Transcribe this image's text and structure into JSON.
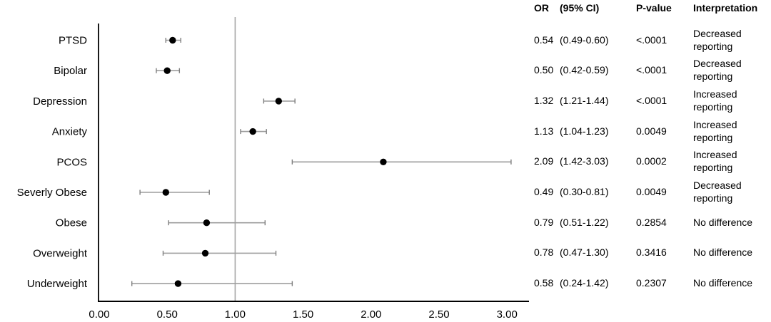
{
  "figure_title": "",
  "chart_data": {
    "type": "scatter",
    "variant": "forest-plot",
    "title": "",
    "xlabel": "",
    "ylabel": "",
    "xlim": [
      0,
      3.16
    ],
    "grid": false,
    "legend": null,
    "reference_line_x": 1.0,
    "xtick_values": [
      0,
      0.5,
      1,
      1.5,
      2,
      2.5,
      3
    ],
    "xtick_labels": [
      "0.00",
      "0.50",
      "1.00",
      "1.50",
      "2.00",
      "2.50",
      "3.00"
    ],
    "categories": [
      "PTSD",
      "Bipolar",
      "Depression",
      "Anxiety",
      "PCOS",
      "Severly Obese",
      "Obese",
      "Overweight",
      "Underweight"
    ],
    "rows": [
      {
        "label": "PTSD",
        "or": 0.54,
        "ci_low": 0.49,
        "ci_high": 0.6,
        "or_text": "0.54",
        "ci_text": "(0.49-0.60)",
        "p_value": "<.0001",
        "interpretation": "Decreased reporting"
      },
      {
        "label": "Bipolar",
        "or": 0.5,
        "ci_low": 0.42,
        "ci_high": 0.59,
        "or_text": "0.50",
        "ci_text": "(0.42-0.59)",
        "p_value": "<.0001",
        "interpretation": "Decreased reporting"
      },
      {
        "label": "Depression",
        "or": 1.32,
        "ci_low": 1.21,
        "ci_high": 1.44,
        "or_text": "1.32",
        "ci_text": "(1.21-1.44)",
        "p_value": "<.0001",
        "interpretation": "Increased reporting"
      },
      {
        "label": "Anxiety",
        "or": 1.13,
        "ci_low": 1.04,
        "ci_high": 1.23,
        "or_text": "1.13",
        "ci_text": "(1.04-1.23)",
        "p_value": "0.0049",
        "interpretation": "Increased reporting"
      },
      {
        "label": "PCOS",
        "or": 2.09,
        "ci_low": 1.42,
        "ci_high": 3.03,
        "or_text": "2.09",
        "ci_text": "(1.42-3.03)",
        "p_value": "0.0002",
        "interpretation": "Increased reporting"
      },
      {
        "label": "Severly Obese",
        "or": 0.49,
        "ci_low": 0.3,
        "ci_high": 0.81,
        "or_text": "0.49",
        "ci_text": "(0.30-0.81)",
        "p_value": "0.0049",
        "interpretation": "Decreased reporting"
      },
      {
        "label": "Obese",
        "or": 0.79,
        "ci_low": 0.51,
        "ci_high": 1.22,
        "or_text": "0.79",
        "ci_text": "(0.51-1.22)",
        "p_value": "0.2854",
        "interpretation": "No difference"
      },
      {
        "label": "Overweight",
        "or": 0.78,
        "ci_low": 0.47,
        "ci_high": 1.3,
        "or_text": "0.78",
        "ci_text": "(0.47-1.30)",
        "p_value": "0.3416",
        "interpretation": "No difference"
      },
      {
        "label": "Underweight",
        "or": 0.58,
        "ci_low": 0.24,
        "ci_high": 1.42,
        "or_text": "0.58",
        "ci_text": "(0.24-1.42)",
        "p_value": "0.2307",
        "interpretation": "No difference"
      }
    ]
  },
  "table": {
    "headers": {
      "or": "OR",
      "ci": "(95% CI)",
      "p": "P-value",
      "interp": "Interpretation"
    }
  },
  "colors": {
    "background": "#ffffff",
    "marker": "#000000",
    "error_bar": "#9e9e9e",
    "error_bar_cap": "#7f7f7f",
    "reference_line": "#a6a6a6",
    "axis": "#000000",
    "text": "#000000"
  }
}
